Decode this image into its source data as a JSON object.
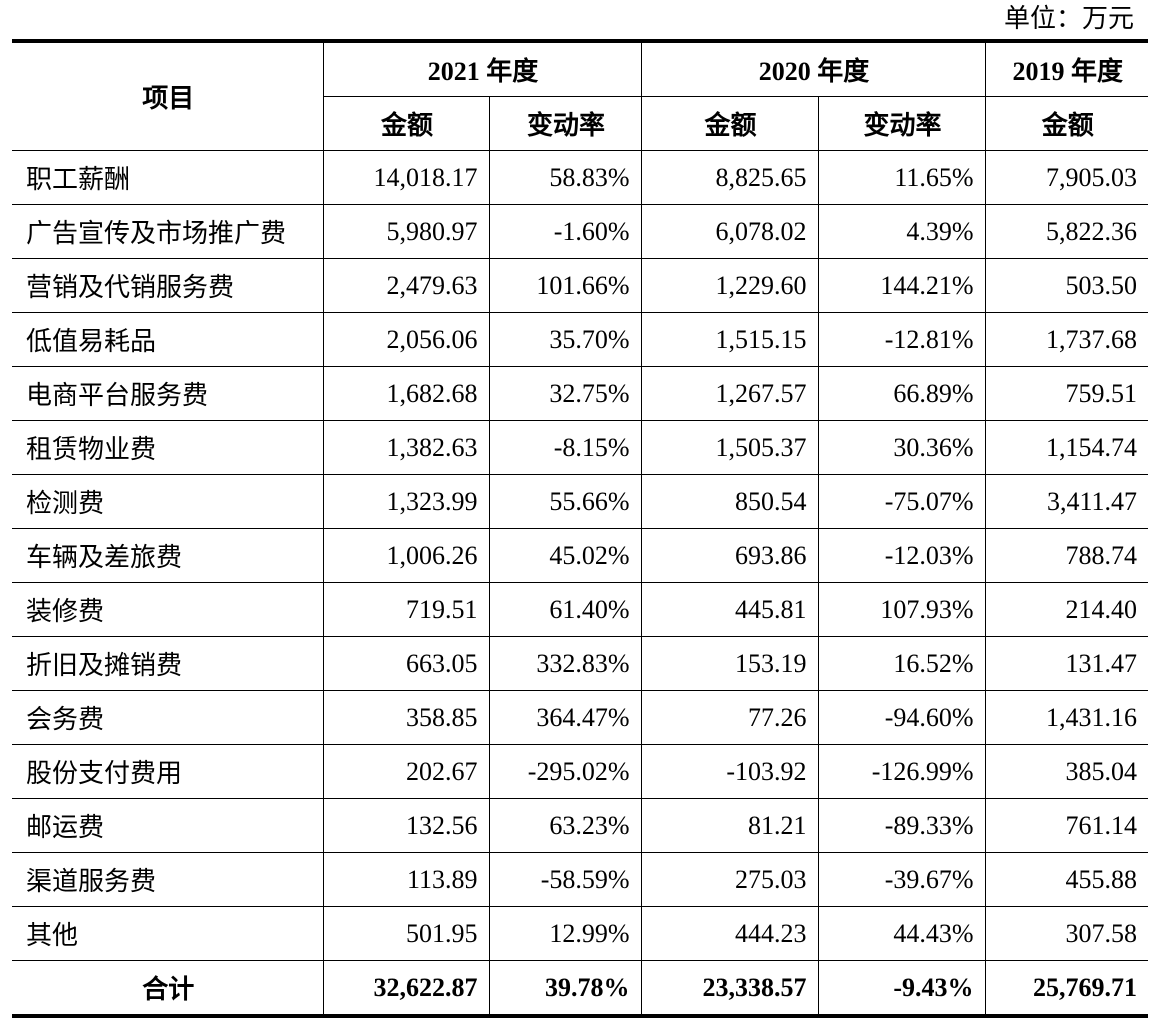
{
  "unit_label": "单位：万元",
  "header": {
    "item": "项目",
    "years": [
      "2021 年度",
      "2020 年度",
      "2019 年度"
    ],
    "amount": "金额",
    "change": "变动率"
  },
  "rows": [
    {
      "name": "职工薪酬",
      "v2021": "14,018.17",
      "c2021": "58.83%",
      "v2020": "8,825.65",
      "c2020": "11.65%",
      "v2019": "7,905.03"
    },
    {
      "name": "广告宣传及市场推广费",
      "v2021": "5,980.97",
      "c2021": "-1.60%",
      "v2020": "6,078.02",
      "c2020": "4.39%",
      "v2019": "5,822.36"
    },
    {
      "name": "营销及代销服务费",
      "v2021": "2,479.63",
      "c2021": "101.66%",
      "v2020": "1,229.60",
      "c2020": "144.21%",
      "v2019": "503.50"
    },
    {
      "name": "低值易耗品",
      "v2021": "2,056.06",
      "c2021": "35.70%",
      "v2020": "1,515.15",
      "c2020": "-12.81%",
      "v2019": "1,737.68"
    },
    {
      "name": "电商平台服务费",
      "v2021": "1,682.68",
      "c2021": "32.75%",
      "v2020": "1,267.57",
      "c2020": "66.89%",
      "v2019": "759.51"
    },
    {
      "name": "租赁物业费",
      "v2021": "1,382.63",
      "c2021": "-8.15%",
      "v2020": "1,505.37",
      "c2020": "30.36%",
      "v2019": "1,154.74"
    },
    {
      "name": "检测费",
      "v2021": "1,323.99",
      "c2021": "55.66%",
      "v2020": "850.54",
      "c2020": "-75.07%",
      "v2019": "3,411.47"
    },
    {
      "name": "车辆及差旅费",
      "v2021": "1,006.26",
      "c2021": "45.02%",
      "v2020": "693.86",
      "c2020": "-12.03%",
      "v2019": "788.74"
    },
    {
      "name": "装修费",
      "v2021": "719.51",
      "c2021": "61.40%",
      "v2020": "445.81",
      "c2020": "107.93%",
      "v2019": "214.40"
    },
    {
      "name": "折旧及摊销费",
      "v2021": "663.05",
      "c2021": "332.83%",
      "v2020": "153.19",
      "c2020": "16.52%",
      "v2019": "131.47"
    },
    {
      "name": "会务费",
      "v2021": "358.85",
      "c2021": "364.47%",
      "v2020": "77.26",
      "c2020": "-94.60%",
      "v2019": "1,431.16"
    },
    {
      "name": "股份支付费用",
      "v2021": "202.67",
      "c2021": "-295.02%",
      "v2020": "-103.92",
      "c2020": "-126.99%",
      "v2019": "385.04"
    },
    {
      "name": "邮运费",
      "v2021": "132.56",
      "c2021": "63.23%",
      "v2020": "81.21",
      "c2020": "-89.33%",
      "v2019": "761.14"
    },
    {
      "name": "渠道服务费",
      "v2021": "113.89",
      "c2021": "-58.59%",
      "v2020": "275.03",
      "c2020": "-39.67%",
      "v2019": "455.88"
    },
    {
      "name": "其他",
      "v2021": "501.95",
      "c2021": "12.99%",
      "v2020": "444.23",
      "c2020": "44.43%",
      "v2019": "307.58"
    }
  ],
  "total": {
    "name": "合计",
    "v2021": "32,622.87",
    "c2021": "39.78%",
    "v2020": "23,338.57",
    "c2020": "-9.43%",
    "v2019": "25,769.71"
  }
}
